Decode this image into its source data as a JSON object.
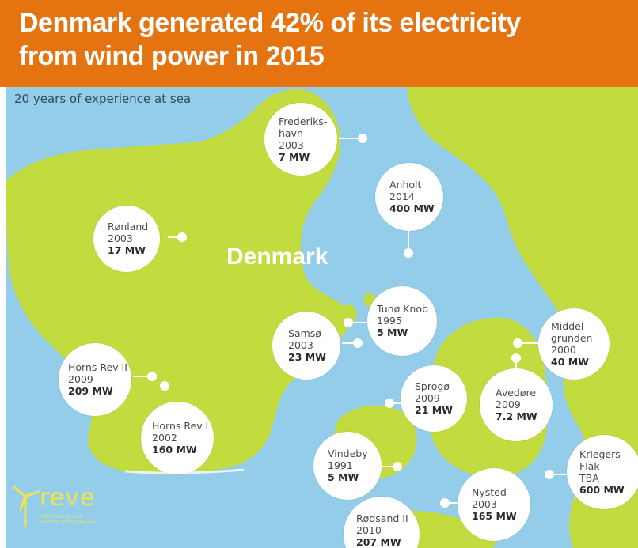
{
  "header": {
    "title_line1": "Denmark generated 42% of its electricity",
    "title_line2": "from wind power in 2015",
    "background_color": "#e5730f"
  },
  "map": {
    "subtitle": "20 years of experience at sea",
    "country_label": "Denmark",
    "sea_color": "#93cde9",
    "land_color": "#c2dc3f",
    "callouts": [
      {
        "name": "Frederiks-\nhavn",
        "year": "2003",
        "mw": "7 MW"
      },
      {
        "name": "Anholt",
        "year": "2014",
        "mw": "400 MW"
      },
      {
        "name": "Rønland",
        "year": "2003",
        "mw": "17 MW"
      },
      {
        "name": "Tunø Knob",
        "year": "1995",
        "mw": "5 MW"
      },
      {
        "name": "Samsø",
        "year": "2003",
        "mw": "23 MW"
      },
      {
        "name": "Middel-\ngrunden",
        "year": "2000",
        "mw": "40 MW"
      },
      {
        "name": "Horns Rev II",
        "year": "2009",
        "mw": "209 MW"
      },
      {
        "name": "Horns Rev I",
        "year": "2002",
        "mw": "160 MW"
      },
      {
        "name": "Sprogø",
        "year": "2009",
        "mw": "21 MW"
      },
      {
        "name": "Avedøre",
        "year": "2009",
        "mw": "7.2 MW"
      },
      {
        "name": "Vindeby",
        "year": "1991",
        "mw": "5 MW"
      },
      {
        "name": "Kriegers\nFlak",
        "year": "TBA",
        "mw": "600 MW"
      },
      {
        "name": "Nysted",
        "year": "2003",
        "mw": "165 MW"
      },
      {
        "name": "Rødsand II",
        "year": "2010",
        "mw": "207 MW"
      }
    ]
  },
  "logo": {
    "brand": "reve",
    "tagline": "Wind Energy and\nElectric Vehicle Review",
    "icon": "wind-turbine-icon"
  }
}
